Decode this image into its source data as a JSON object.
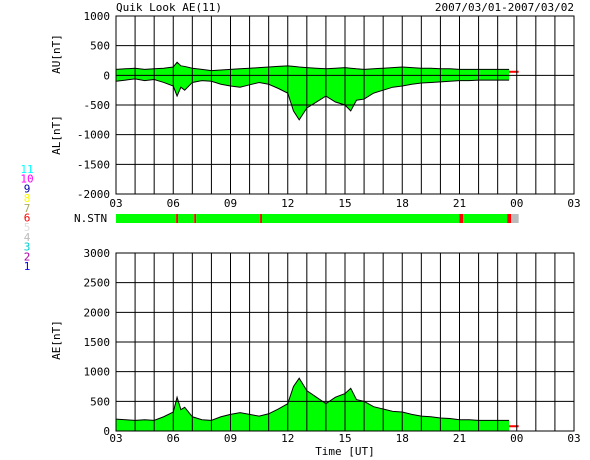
{
  "header": {
    "left_title": "Quik Look AE(11)",
    "right_title": "2007/03/01-2007/03/02"
  },
  "colors": {
    "fill_green": "#00ff00",
    "outline": "#000000",
    "station_red": "#ff0000",
    "station_gray": "#bbbbbb"
  },
  "station_scale": {
    "labels": [
      {
        "text": "11",
        "color": "#00ffff"
      },
      {
        "text": "10",
        "color": "#ff00ff"
      },
      {
        "text": "9",
        "color": "#0000aa"
      },
      {
        "text": "8",
        "color": "#ffff00"
      },
      {
        "text": "7",
        "color": "#aaaa66"
      },
      {
        "text": "6",
        "color": "#ff0000"
      },
      {
        "text": "5",
        "color": "#dddddd"
      },
      {
        "text": "4",
        "color": "#bbbbbb"
      },
      {
        "text": "3",
        "color": "#00cccc"
      },
      {
        "text": "2",
        "color": "#aa00aa"
      },
      {
        "text": "1",
        "color": "#0000ff"
      }
    ]
  },
  "chart_data": [
    {
      "type": "area",
      "name": "AU/AL panel",
      "ylabel_top": "AU[nT]",
      "ylabel_bottom": "AL[nT]",
      "ylim": [
        -2000,
        1000
      ],
      "yticks": [
        "1000",
        "500",
        "0",
        "-500",
        "-1000",
        "-1500",
        "-2000"
      ],
      "xlim": [
        3,
        27
      ],
      "xticks": [
        "03",
        "06",
        "09",
        "12",
        "15",
        "18",
        "21",
        "00",
        "03"
      ],
      "x": [
        3,
        3.5,
        4,
        4.5,
        5,
        5.5,
        6,
        6.2,
        6.4,
        6.6,
        7,
        7.5,
        8,
        8.5,
        9,
        9.5,
        10,
        10.5,
        11,
        11.5,
        12,
        12.3,
        12.6,
        13,
        13.5,
        14,
        14.5,
        15,
        15.3,
        15.6,
        16,
        16.5,
        17,
        17.5,
        18,
        18.5,
        19,
        19.5,
        20,
        20.5,
        21,
        21.5,
        22,
        22.5,
        23.6
      ],
      "au": [
        100,
        110,
        120,
        100,
        110,
        120,
        140,
        220,
        160,
        150,
        120,
        100,
        80,
        90,
        100,
        110,
        120,
        130,
        140,
        150,
        160,
        150,
        140,
        130,
        120,
        110,
        120,
        130,
        120,
        110,
        100,
        110,
        120,
        130,
        140,
        130,
        120,
        120,
        110,
        110,
        100,
        100,
        100,
        100,
        100
      ],
      "al": [
        -100,
        -80,
        -60,
        -90,
        -70,
        -120,
        -180,
        -350,
        -200,
        -250,
        -120,
        -90,
        -100,
        -150,
        -180,
        -200,
        -160,
        -120,
        -150,
        -220,
        -300,
        -600,
        -750,
        -550,
        -450,
        -350,
        -450,
        -500,
        -600,
        -420,
        -400,
        -300,
        -250,
        -200,
        -180,
        -150,
        -130,
        -120,
        -110,
        -100,
        -90,
        -90,
        -80,
        -80,
        -80
      ],
      "after_gap_x": [
        23.6,
        24.1
      ],
      "after_gap_au": [
        60,
        60
      ],
      "after_gap_al": [
        -20,
        -20
      ]
    },
    {
      "type": "bar",
      "name": "station count",
      "label": "N.STN",
      "xlim": [
        3,
        27
      ],
      "segments": [
        {
          "from": 3,
          "to": 6.15,
          "color": "#00ff00"
        },
        {
          "from": 6.15,
          "to": 6.25,
          "color": "#ff0000"
        },
        {
          "from": 6.25,
          "to": 7.1,
          "color": "#00ff00"
        },
        {
          "from": 7.1,
          "to": 7.2,
          "color": "#ff0000"
        },
        {
          "from": 7.2,
          "to": 10.55,
          "color": "#00ff00"
        },
        {
          "from": 10.55,
          "to": 10.65,
          "color": "#ff0000"
        },
        {
          "from": 10.65,
          "to": 21.0,
          "color": "#00ff00"
        },
        {
          "from": 21.0,
          "to": 21.2,
          "color": "#ff0000"
        },
        {
          "from": 21.2,
          "to": 23.5,
          "color": "#00ff00"
        },
        {
          "from": 23.5,
          "to": 23.7,
          "color": "#ff0000"
        },
        {
          "from": 23.7,
          "to": 24.1,
          "color": "#bbbbbb"
        }
      ]
    },
    {
      "type": "area",
      "name": "AE panel",
      "ylabel": "AE[nT]",
      "xlabel": "Time [UT]",
      "ylim": [
        0,
        3000
      ],
      "yticks": [
        "3000",
        "2500",
        "2000",
        "1500",
        "1000",
        "500",
        "0"
      ],
      "xlim": [
        3,
        27
      ],
      "xticks": [
        "03",
        "06",
        "09",
        "12",
        "15",
        "18",
        "21",
        "00",
        "03"
      ],
      "x": [
        3,
        3.5,
        4,
        4.5,
        5,
        5.5,
        6,
        6.2,
        6.4,
        6.6,
        7,
        7.5,
        8,
        8.5,
        9,
        9.5,
        10,
        10.5,
        11,
        11.5,
        12,
        12.3,
        12.6,
        13,
        13.5,
        14,
        14.5,
        15,
        15.3,
        15.6,
        16,
        16.5,
        17,
        17.5,
        18,
        18.5,
        19,
        19.5,
        20,
        20.5,
        21,
        21.5,
        22,
        22.5,
        23.6
      ],
      "values": [
        200,
        190,
        180,
        190,
        180,
        240,
        320,
        570,
        360,
        400,
        240,
        190,
        180,
        240,
        280,
        310,
        280,
        250,
        290,
        370,
        460,
        750,
        890,
        680,
        570,
        460,
        570,
        630,
        720,
        530,
        500,
        410,
        370,
        330,
        320,
        280,
        250,
        240,
        220,
        210,
        190,
        190,
        180,
        180,
        180
      ],
      "after_gap_x": [
        23.6,
        24.1
      ],
      "after_gap_values": [
        80,
        80
      ]
    }
  ]
}
